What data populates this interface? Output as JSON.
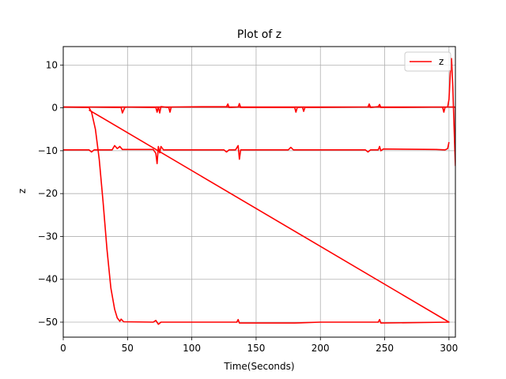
{
  "chart_data": {
    "type": "line",
    "title": "Plot of z",
    "xlabel": "Time(Seconds)",
    "ylabel": "z",
    "xlim": [
      0,
      305
    ],
    "ylim": [
      -53.5,
      14.3
    ],
    "xticks": [
      0,
      50,
      100,
      150,
      200,
      250,
      300
    ],
    "yticks": [
      -50,
      -40,
      -30,
      -20,
      -10,
      0,
      10
    ],
    "grid": true,
    "legend": {
      "position": "top-right",
      "entries": [
        "z"
      ]
    },
    "colors": {
      "series": "#ff0000",
      "grid": "#b0b0b0",
      "axes": "#000000"
    },
    "series": [
      {
        "name": "z",
        "points": [
          [
            0,
            0.2
          ],
          [
            20,
            0.2
          ],
          [
            45,
            0.1
          ],
          [
            46,
            -1.2
          ],
          [
            48,
            0.2
          ],
          [
            72,
            0.1
          ],
          [
            73,
            -1.0
          ],
          [
            74,
            0.2
          ],
          [
            75,
            -1.2
          ],
          [
            76,
            0.3
          ],
          [
            82,
            0.1
          ],
          [
            83,
            -1.0
          ],
          [
            84,
            0.2
          ],
          [
            127,
            0.3
          ],
          [
            128,
            0.9
          ],
          [
            129,
            0.1
          ],
          [
            136,
            0.2
          ],
          [
            137,
            1.0
          ],
          [
            138,
            0.1
          ],
          [
            180,
            0.1
          ],
          [
            181,
            -1.0
          ],
          [
            182,
            0.1
          ],
          [
            186,
            0.2
          ],
          [
            187,
            -0.8
          ],
          [
            188,
            0.1
          ],
          [
            237,
            0.2
          ],
          [
            238,
            0.9
          ],
          [
            239,
            0.1
          ],
          [
            245,
            0.3
          ],
          [
            246,
            0.8
          ],
          [
            247,
            0.1
          ],
          [
            295,
            0.2
          ],
          [
            296,
            -1.0
          ],
          [
            297,
            0.2
          ],
          [
            299,
            0.2
          ],
          [
            300,
            2.0
          ],
          [
            301,
            8.0
          ],
          [
            302,
            11.5
          ],
          [
            303,
            5.0
          ],
          [
            304,
            -5.0
          ],
          [
            305,
            -13.5
          ],
          [
            305,
            0.2
          ],
          [
            0,
            0.2
          ]
        ]
      },
      {
        "name": "z",
        "points": [
          [
            0,
            -9.8
          ],
          [
            20,
            -9.8
          ],
          [
            22,
            -10.3
          ],
          [
            24,
            -9.8
          ],
          [
            38,
            -9.8
          ],
          [
            40,
            -8.8
          ],
          [
            42,
            -9.5
          ],
          [
            44,
            -9.0
          ],
          [
            46,
            -9.7
          ],
          [
            70,
            -9.7
          ],
          [
            72,
            -10.6
          ],
          [
            73,
            -13.0
          ],
          [
            74,
            -9.0
          ],
          [
            75,
            -10.5
          ],
          [
            76,
            -9.0
          ],
          [
            78,
            -9.8
          ],
          [
            125,
            -9.8
          ],
          [
            127,
            -10.3
          ],
          [
            129,
            -9.8
          ],
          [
            134,
            -9.8
          ],
          [
            136,
            -8.8
          ],
          [
            137,
            -12.0
          ],
          [
            138,
            -9.8
          ],
          [
            175,
            -9.8
          ],
          [
            177,
            -9.2
          ],
          [
            179,
            -9.8
          ],
          [
            200,
            -9.8
          ],
          [
            235,
            -9.8
          ],
          [
            237,
            -10.3
          ],
          [
            239,
            -9.8
          ],
          [
            245,
            -9.8
          ],
          [
            246,
            -9.0
          ],
          [
            247,
            -10.0
          ],
          [
            249,
            -9.6
          ],
          [
            290,
            -9.7
          ],
          [
            297,
            -9.8
          ],
          [
            299,
            -9.5
          ],
          [
            300,
            -8.0
          ]
        ]
      },
      {
        "name": "z",
        "points": [
          [
            0,
            0.2
          ],
          [
            20,
            0.1
          ],
          [
            22,
            -1.0
          ],
          [
            25,
            -5.0
          ],
          [
            28,
            -12.0
          ],
          [
            31,
            -22.0
          ],
          [
            34,
            -33.0
          ],
          [
            37,
            -42.0
          ],
          [
            40,
            -47.0
          ],
          [
            42,
            -49.0
          ],
          [
            44,
            -49.8
          ],
          [
            45,
            -49.3
          ],
          [
            47,
            -49.9
          ],
          [
            70,
            -50.0
          ],
          [
            72,
            -49.6
          ],
          [
            74,
            -50.5
          ],
          [
            76,
            -50.0
          ],
          [
            125,
            -50.0
          ],
          [
            135,
            -50.0
          ],
          [
            136,
            -49.4
          ],
          [
            137,
            -50.2
          ],
          [
            180,
            -50.2
          ],
          [
            200,
            -50.0
          ],
          [
            235,
            -50.0
          ],
          [
            245,
            -50.0
          ],
          [
            246,
            -49.4
          ],
          [
            247,
            -50.2
          ],
          [
            300,
            -50.0
          ],
          [
            20,
            -0.5
          ]
        ]
      }
    ]
  }
}
